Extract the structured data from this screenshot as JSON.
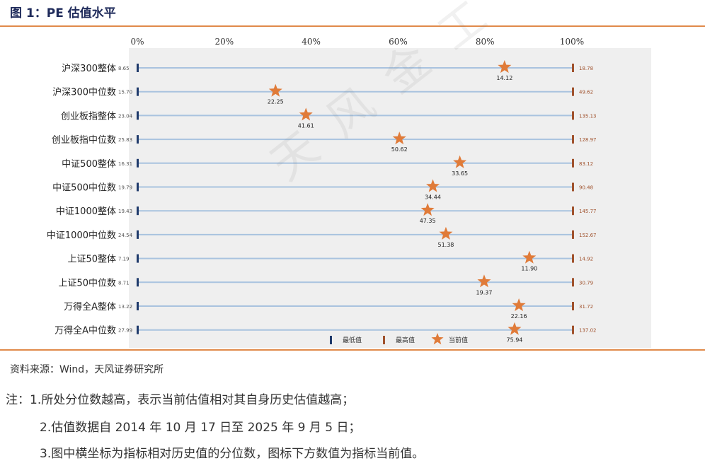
{
  "figure_title": "图 1：PE 估值水平",
  "watermark": "天风金工",
  "source": "资料来源：Wind，天风证券研究所",
  "notes": [
    "注：1.所处分位数越高，表示当前估值相对其自身历史估值越高；",
    "2.估值数据自 2014 年 10 月 17 日至 2025 年 9 月 5 日；",
    "3.图中横坐标为指标相对历史值的分位数，图标下方数值为指标当前值。"
  ],
  "colors": {
    "min_marker": "#1f3a6b",
    "max_marker": "#a0522d",
    "current_marker": "#e07b39",
    "row_line": "#a9c3df",
    "plot_bg": "#efefef",
    "accent_rule": "#e08a4a"
  },
  "chart_data": {
    "type": "scatter",
    "x_axis": {
      "ticks": [
        "0%",
        "20%",
        "40%",
        "60%",
        "80%",
        "100%"
      ],
      "range": [
        0,
        100
      ],
      "position": "top"
    },
    "legend": {
      "position": "bottom-center",
      "items": [
        "最低值",
        "最高值",
        "当前值"
      ]
    },
    "rows": [
      {
        "label": "沪深300整体",
        "min": "8.65",
        "max": "18.78",
        "current": "14.12",
        "percentile": 84.5
      },
      {
        "label": "沪深300中位数",
        "min": "15.70",
        "max": "49.62",
        "current": "22.25",
        "percentile": 31.8
      },
      {
        "label": "创业板指整体",
        "min": "23.04",
        "max": "135.13",
        "current": "41.61",
        "percentile": 38.8
      },
      {
        "label": "创业板指中位数",
        "min": "25.83",
        "max": "128.97",
        "current": "50.62",
        "percentile": 60.3
      },
      {
        "label": "中证500整体",
        "min": "16.31",
        "max": "83.12",
        "current": "33.65",
        "percentile": 74.2
      },
      {
        "label": "中证500中位数",
        "min": "19.79",
        "max": "90.48",
        "current": "34.44",
        "percentile": 68.0
      },
      {
        "label": "中证1000整体",
        "min": "19.43",
        "max": "145.77",
        "current": "47.35",
        "percentile": 66.8
      },
      {
        "label": "中证1000中位数",
        "min": "24.54",
        "max": "152.67",
        "current": "51.38",
        "percentile": 71.0
      },
      {
        "label": "上证50整体",
        "min": "7.19",
        "max": "14.92",
        "current": "11.90",
        "percentile": 90.2
      },
      {
        "label": "上证50中位数",
        "min": "8.71",
        "max": "30.79",
        "current": "19.37",
        "percentile": 79.8
      },
      {
        "label": "万得全A整体",
        "min": "13.22",
        "max": "31.72",
        "current": "22.16",
        "percentile": 87.8
      },
      {
        "label": "万得全A中位数",
        "min": "27.99",
        "max": "137.02",
        "current": "75.94",
        "percentile": 86.8
      }
    ]
  }
}
